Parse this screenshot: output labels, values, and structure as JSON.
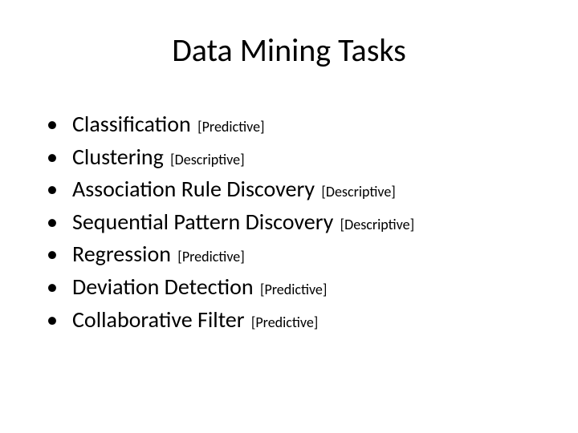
{
  "title": "Data Mining Tasks",
  "items": [
    {
      "name": "Classification",
      "annotation": "[Predictive]"
    },
    {
      "name": "Clustering",
      "annotation": "[Descriptive]"
    },
    {
      "name": "Association Rule Discovery",
      "annotation": "[Descriptive]"
    },
    {
      "name": "Sequential Pattern Discovery",
      "annotation": "[Descriptive]"
    },
    {
      "name": "Regression",
      "annotation": "[Predictive]"
    },
    {
      "name": "Deviation Detection",
      "annotation": "[Predictive]"
    },
    {
      "name": "Collaborative Filter",
      "annotation": "[Predictive]"
    }
  ],
  "style": {
    "background_color": "#ffffff",
    "text_color": "#000000",
    "title_fontsize": 40,
    "item_fontsize": 28,
    "annotation_fontsize": 18,
    "font_family": "Calibri",
    "bullet_char": "•"
  }
}
